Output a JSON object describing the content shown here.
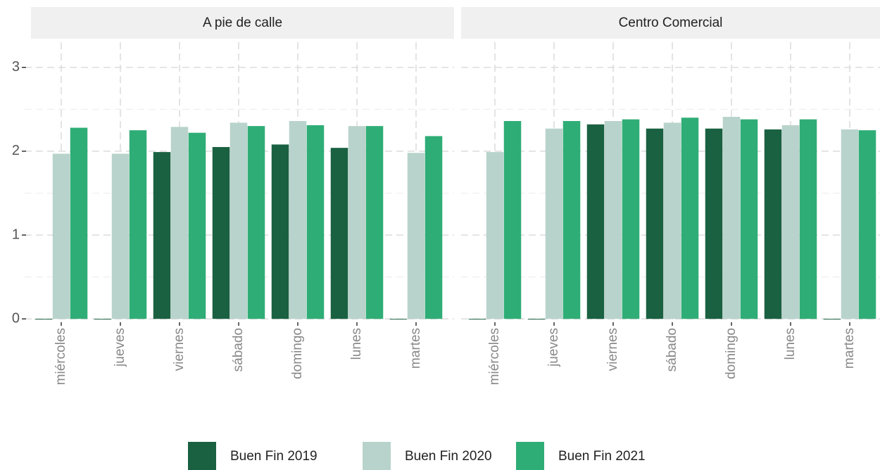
{
  "chart_data": [
    {
      "type": "bar",
      "title": "A pie de calle",
      "categories": [
        "miércoles",
        "jueves",
        "viernes",
        "sábado",
        "domingo",
        "lunes",
        "martes"
      ],
      "series": [
        {
          "name": "Buen Fin 2019",
          "color": "#1a6141",
          "values": [
            0,
            0,
            1.99,
            2.05,
            2.08,
            2.04,
            0
          ]
        },
        {
          "name": "Buen Fin 2020",
          "color": "#b8d3cb",
          "values": [
            1.97,
            1.97,
            2.29,
            2.34,
            2.36,
            2.3,
            1.98
          ]
        },
        {
          "name": "Buen Fin 2021",
          "color": "#2fad76",
          "values": [
            2.28,
            2.25,
            2.22,
            2.3,
            2.31,
            2.3,
            2.18
          ]
        }
      ],
      "ylim": [
        -0.04,
        3.3
      ],
      "yticks": [
        0,
        1,
        2,
        3
      ],
      "grid": true
    },
    {
      "type": "bar",
      "title": "Centro Comercial",
      "categories": [
        "miércoles",
        "jueves",
        "viernes",
        "sábado",
        "domingo",
        "lunes",
        "martes"
      ],
      "series": [
        {
          "name": "Buen Fin 2019",
          "color": "#1a6141",
          "values": [
            0,
            0,
            2.32,
            2.27,
            2.27,
            2.26,
            0
          ]
        },
        {
          "name": "Buen Fin 2020",
          "color": "#b8d3cb",
          "values": [
            1.99,
            2.27,
            2.36,
            2.34,
            2.41,
            2.31,
            2.26
          ]
        },
        {
          "name": "Buen Fin 2021",
          "color": "#2fad76",
          "values": [
            2.36,
            2.36,
            2.38,
            2.4,
            2.38,
            2.38,
            2.25
          ]
        }
      ],
      "ylim": [
        -0.04,
        3.3
      ],
      "yticks": [
        0,
        1,
        2,
        3
      ],
      "grid": true
    }
  ]
}
